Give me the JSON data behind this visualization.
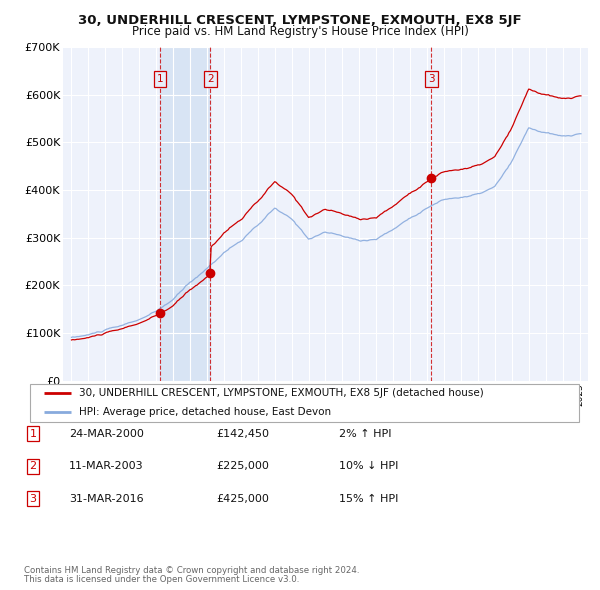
{
  "title": "30, UNDERHILL CRESCENT, LYMPSTONE, EXMOUTH, EX8 5JF",
  "subtitle": "Price paid vs. HM Land Registry's House Price Index (HPI)",
  "background_color": "#ffffff",
  "plot_bg_color": "#eef2fb",
  "grid_color": "#ffffff",
  "sale_line_color": "#cc0000",
  "hpi_line_color": "#88aadd",
  "shade_color": "#d8e4f4",
  "transactions": [
    {
      "num": 1,
      "date_x": 2000.22,
      "price": 142450,
      "label": "1",
      "date_str": "24-MAR-2000",
      "price_str": "£142,450",
      "pct": "2%",
      "dir": "↑"
    },
    {
      "num": 2,
      "date_x": 2003.2,
      "price": 225000,
      "label": "2",
      "date_str": "11-MAR-2003",
      "price_str": "£225,000",
      "pct": "10%",
      "dir": "↓"
    },
    {
      "num": 3,
      "date_x": 2016.25,
      "price": 425000,
      "label": "3",
      "date_str": "31-MAR-2016",
      "price_str": "£425,000",
      "pct": "15%",
      "dir": "↑"
    }
  ],
  "legend_label1": "30, UNDERHILL CRESCENT, LYMPSTONE, EXMOUTH, EX8 5JF (detached house)",
  "legend_label2": "HPI: Average price, detached house, East Devon",
  "footer1": "Contains HM Land Registry data © Crown copyright and database right 2024.",
  "footer2": "This data is licensed under the Open Government Licence v3.0.",
  "xmin": 1994.5,
  "xmax": 2025.5,
  "ymin": 0,
  "ymax": 700000,
  "yticks": [
    0,
    100000,
    200000,
    300000,
    400000,
    500000,
    600000,
    700000
  ],
  "ytick_labels": [
    "£0",
    "£100K",
    "£200K",
    "£300K",
    "£400K",
    "£500K",
    "£600K",
    "£700K"
  ]
}
